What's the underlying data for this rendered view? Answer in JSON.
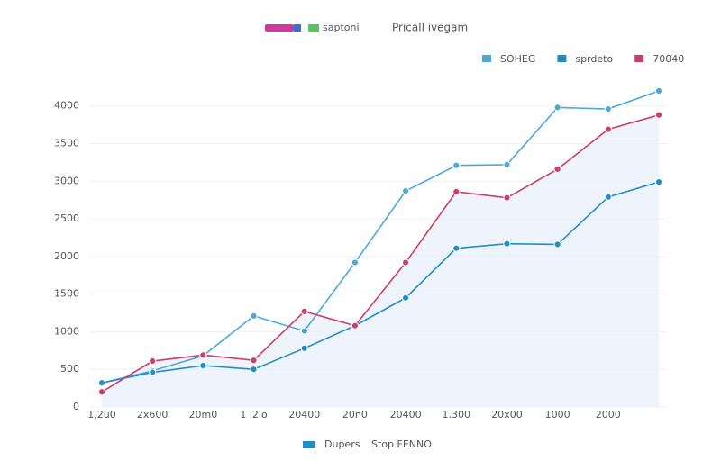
{
  "chart_data": {
    "type": "line",
    "header_left": "saptoni",
    "header_right": "Pricall ivegam",
    "footer_left": "Dupers",
    "footer_right": "Stop FENNO",
    "categories": [
      "1,2u0",
      "2x600",
      "20m0",
      "1 l2io",
      "20400",
      "20n0",
      "20400",
      "1.300",
      "20x00",
      "1000",
      "2000",
      null
    ],
    "ylim": [
      0,
      4200
    ],
    "yticks": [
      0,
      500,
      1000,
      1500,
      2000,
      2500,
      3000,
      3500,
      4000
    ],
    "grid": true,
    "legend": "top-right",
    "area_color": "#e8f0fb",
    "series": [
      {
        "name": "SOHEG",
        "color": "#4aa9d8",
        "values": [
          320,
          480,
          680,
          1210,
          1010,
          1920,
          2870,
          3210,
          3220,
          3980,
          3960,
          4200
        ]
      },
      {
        "name": "sprdeto",
        "color": "#1f8fc4",
        "values": [
          320,
          460,
          550,
          500,
          780,
          1080,
          1450,
          2110,
          2170,
          2160,
          2790,
          2990
        ]
      },
      {
        "name": "70040",
        "color": "#cc3d6a",
        "values": [
          200,
          610,
          690,
          620,
          1270,
          1080,
          1920,
          2860,
          2780,
          3160,
          3690,
          3880
        ]
      }
    ]
  }
}
